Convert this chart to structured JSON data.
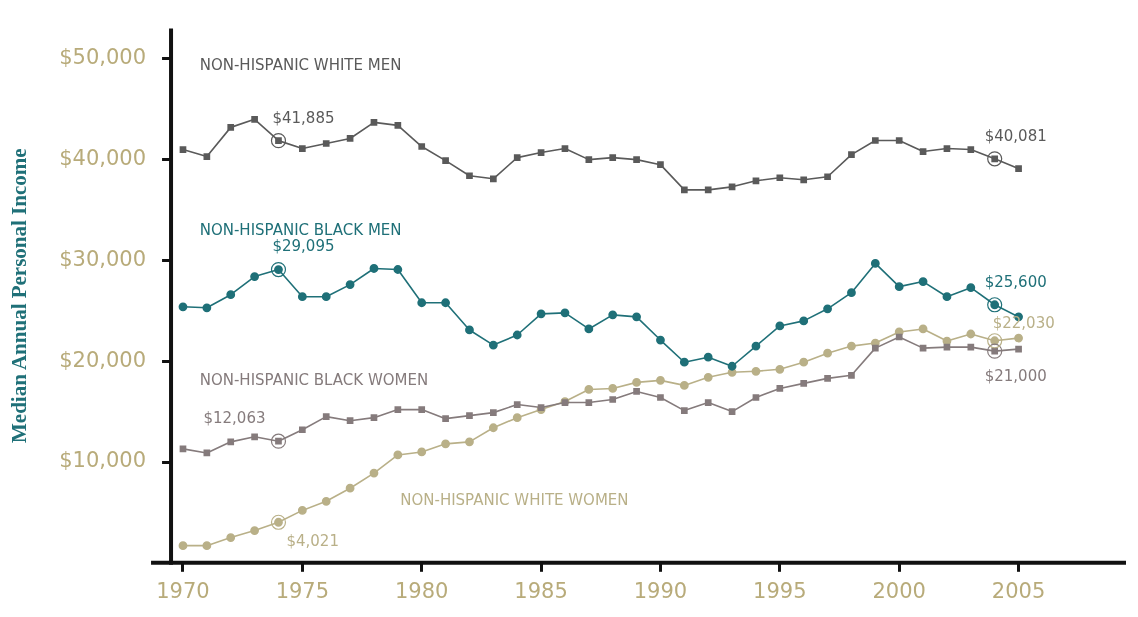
{
  "chart_data": {
    "type": "line",
    "ylabel": "Median Annual Personal Income",
    "x": [
      1970,
      1971,
      1972,
      1973,
      1974,
      1975,
      1976,
      1977,
      1978,
      1979,
      1980,
      1981,
      1982,
      1983,
      1984,
      1985,
      1986,
      1987,
      1988,
      1989,
      1990,
      1991,
      1992,
      1993,
      1994,
      1995,
      1996,
      1997,
      1998,
      1999,
      2000,
      2001,
      2002,
      2003,
      2004,
      2005
    ],
    "series": [
      {
        "name": "NON-HISPANIC WHITE MEN",
        "color": "#5a5a5a",
        "marker": "square",
        "values": [
          41000,
          40300,
          43200,
          44000,
          41885,
          41100,
          41600,
          42100,
          43700,
          43400,
          41300,
          39900,
          38400,
          38100,
          40200,
          40700,
          41100,
          40000,
          40200,
          40000,
          39500,
          37000,
          37000,
          37300,
          37900,
          38200,
          38000,
          38300,
          40500,
          41900,
          41900,
          40800,
          41100,
          41000,
          40081,
          39100
        ],
        "value_labels": [
          null,
          null,
          null,
          null,
          "$41,885",
          null,
          null,
          null,
          null,
          null,
          null,
          null,
          null,
          null,
          null,
          null,
          null,
          null,
          null,
          null,
          null,
          null,
          null,
          null,
          null,
          null,
          null,
          null,
          null,
          null,
          null,
          null,
          null,
          null,
          "$40,081",
          null
        ]
      },
      {
        "name": "NON-HISPANIC BLACK MEN",
        "color": "#1f7078",
        "marker": "circle",
        "values": [
          25400,
          25300,
          26600,
          28400,
          29095,
          26400,
          26400,
          27600,
          29200,
          29100,
          25800,
          25800,
          23100,
          21600,
          22600,
          24700,
          24800,
          23200,
          24600,
          24400,
          22100,
          19900,
          20400,
          19500,
          21500,
          23500,
          24000,
          25200,
          26800,
          29700,
          27400,
          27900,
          26400,
          27300,
          25600,
          24400
        ],
        "value_labels": [
          null,
          null,
          null,
          null,
          "$29,095",
          null,
          null,
          null,
          null,
          null,
          null,
          null,
          null,
          null,
          null,
          null,
          null,
          null,
          null,
          null,
          null,
          null,
          null,
          null,
          null,
          null,
          null,
          null,
          null,
          null,
          null,
          null,
          null,
          null,
          "$25,600",
          null
        ]
      },
      {
        "name": "NON-HISPANIC BLACK WOMEN",
        "color": "#857b7c",
        "marker": "square",
        "values": [
          11300,
          10900,
          12000,
          12500,
          12063,
          13200,
          14500,
          14100,
          14400,
          15200,
          15200,
          14300,
          14600,
          14900,
          15700,
          15400,
          15900,
          15900,
          16200,
          17000,
          16400,
          15100,
          15900,
          15000,
          16400,
          17300,
          17800,
          18300,
          18600,
          21300,
          22400,
          21300,
          21400,
          21400,
          21000,
          21200
        ],
        "value_labels": [
          null,
          null,
          null,
          null,
          "$12,063",
          null,
          null,
          null,
          null,
          null,
          null,
          null,
          null,
          null,
          null,
          null,
          null,
          null,
          null,
          null,
          null,
          null,
          null,
          null,
          null,
          null,
          null,
          null,
          null,
          null,
          null,
          null,
          null,
          null,
          "$21,000",
          null
        ]
      },
      {
        "name": "NON-HISPANIC WHITE WOMEN",
        "color": "#b9b088",
        "marker": "circle",
        "values": [
          1700,
          1700,
          2500,
          3200,
          4021,
          5200,
          6100,
          7400,
          8900,
          10700,
          11000,
          11800,
          12000,
          13400,
          14400,
          15200,
          16000,
          17200,
          17300,
          17900,
          18100,
          17600,
          18400,
          18900,
          19000,
          19200,
          19900,
          20800,
          21500,
          21800,
          22900,
          23200,
          22000,
          22700,
          22030,
          22300
        ],
        "value_labels": [
          null,
          null,
          null,
          null,
          "$4,021",
          null,
          null,
          null,
          null,
          null,
          null,
          null,
          null,
          null,
          null,
          null,
          null,
          null,
          null,
          null,
          null,
          null,
          null,
          null,
          null,
          null,
          null,
          null,
          null,
          null,
          null,
          null,
          null,
          null,
          "$22,030",
          null
        ]
      }
    ],
    "xlim": [
      1969.5,
      2009.5
    ],
    "xticks": [
      1970,
      1975,
      1980,
      1985,
      1990,
      1995,
      2000,
      2005
    ],
    "ylim": [
      0,
      53000
    ],
    "yticks": [
      {
        "value": 10000,
        "label": "$10,000"
      },
      {
        "value": 20000,
        "label": "$20,000"
      },
      {
        "value": 30000,
        "label": "$30,000"
      },
      {
        "value": 40000,
        "label": "$40,000"
      },
      {
        "value": 50000,
        "label": "$50,000"
      }
    ],
    "grid": false,
    "legend": false
  }
}
